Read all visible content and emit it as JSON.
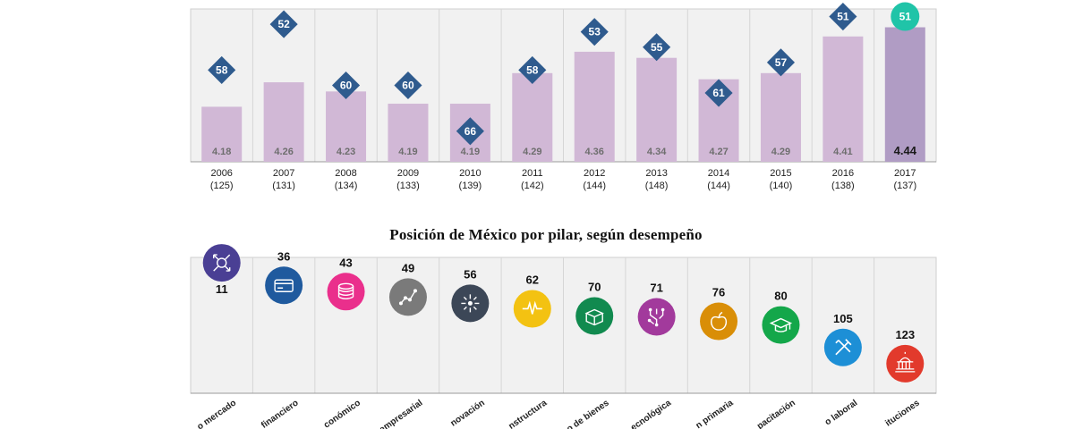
{
  "chart_data": [
    {
      "type": "bar",
      "categories": [
        "2006",
        "2007",
        "2008",
        "2009",
        "2010",
        "2011",
        "2012",
        "2013",
        "2014",
        "2015",
        "2016",
        "2017"
      ],
      "category_sublabels": [
        "(125)",
        "(131)",
        "(134)",
        "(133)",
        "(139)",
        "(142)",
        "(144)",
        "(148)",
        "(144)",
        "(140)",
        "(138)",
        "(137)"
      ],
      "values": [
        4.18,
        4.26,
        4.23,
        4.19,
        4.19,
        4.29,
        4.36,
        4.34,
        4.27,
        4.29,
        4.41,
        4.44
      ],
      "value_labels": [
        "4.18",
        "4.26",
        "4.23",
        "4.19",
        "4.19",
        "4.29",
        "4.36",
        "4.34",
        "4.27",
        "4.29",
        "4.41",
        "4.44"
      ],
      "ranks": [
        58,
        52,
        60,
        60,
        66,
        58,
        53,
        55,
        61,
        57,
        51,
        51
      ],
      "rank_labels": [
        "58",
        "52",
        "60",
        "60",
        "66",
        "58",
        "53",
        "55",
        "61",
        "57",
        "51",
        "51"
      ],
      "highlight_index": 11,
      "ylim": [
        4.0,
        4.5
      ],
      "rank_lim": [
        50,
        70
      ],
      "grid": true,
      "colors": {
        "bar": "#d1b8d6",
        "bar_highlight": "#b09cc4",
        "rank_marker": "#2f5b8e",
        "rank_marker_highlight": "#20c4a8",
        "plot_bg": "#f1f1f1",
        "grid": "#d6d6d6"
      }
    },
    {
      "type": "bar",
      "title": "Posición de México por pilar,  según desempeño",
      "categories": [
        "o mercado",
        "financiero",
        "conómico",
        "empresarial",
        "novación",
        "nstructura",
        "o de bienes",
        "ecnológica",
        "n primaria",
        "pacitación",
        "o laboral",
        "ituciones"
      ],
      "values": [
        11,
        36,
        43,
        49,
        56,
        62,
        70,
        71,
        76,
        80,
        105,
        123
      ],
      "value_labels": [
        "11",
        "36",
        "43",
        "49",
        "56",
        "62",
        "70",
        "71",
        "76",
        "80",
        "105",
        "123"
      ],
      "icons": [
        "market-size-icon",
        "credit-card-icon",
        "coins-stack-icon",
        "network-graph-icon",
        "spark-burst-icon",
        "infrastructure-pulse-icon",
        "open-box-icon",
        "circuit-icon",
        "apple-icon",
        "graduation-cap-icon",
        "tools-icon",
        "capitol-building-icon"
      ],
      "icon_colors": [
        "#4a3f94",
        "#1f5a9e",
        "#ea2f8c",
        "#7a7a7a",
        "#3c4757",
        "#f3c212",
        "#118a4f",
        "#a23a9c",
        "#d98e07",
        "#14a74a",
        "#1d8fd6",
        "#e23a2c"
      ],
      "rank_lim": [
        0,
        140
      ],
      "grid": true
    }
  ]
}
